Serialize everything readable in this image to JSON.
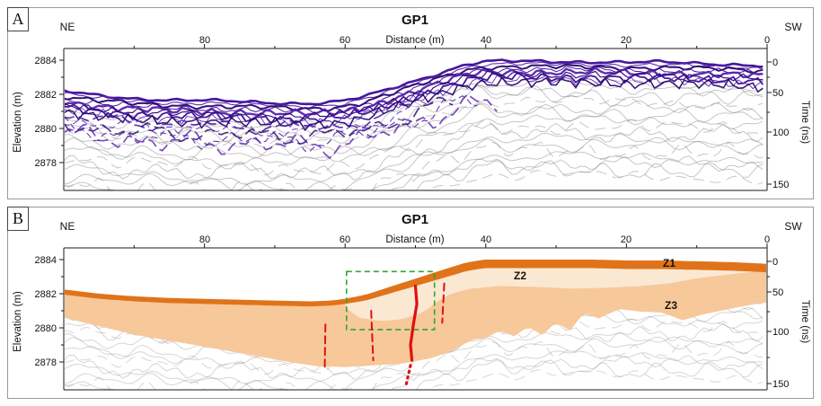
{
  "panels": [
    {
      "corner_label": "A",
      "title": "GP1",
      "dir_left": "NE",
      "dir_right": "SW",
      "axes": {
        "top_label": "Distance (m)",
        "top_ticks": [
          "80",
          "60",
          "40",
          "20",
          "0"
        ],
        "left_label": "Elevation (m)",
        "left_ticks": [
          "2884",
          "2882",
          "2880",
          "2878"
        ],
        "right_label": "Time (ns)",
        "right_ticks": [
          "0",
          "50",
          "100",
          "150"
        ]
      }
    },
    {
      "corner_label": "B",
      "title": "GP1",
      "dir_left": "NE",
      "dir_right": "SW",
      "zone_labels": [
        "Z1",
        "Z2",
        "Z3"
      ],
      "axes": {
        "top_label": "Distance (m)",
        "top_ticks": [
          "80",
          "60",
          "40",
          "20",
          "0"
        ],
        "left_label": "Elevation (m)",
        "left_ticks": [
          "2884",
          "2882",
          "2880",
          "2878"
        ],
        "right_label": "Time (ns)",
        "right_ticks": [
          "0",
          "50",
          "100",
          "150"
        ]
      }
    }
  ],
  "chart_data": [
    {
      "type": "heatmap",
      "panel": "A",
      "title": "GP1",
      "description": "GPR radargram: strong purple banded reflections draping the ground surface over weak diffuse grey reflections",
      "x_axis": {
        "label": "Distance (m)",
        "min": 0,
        "max": 100,
        "reversed": true,
        "ticks": [
          80,
          60,
          40,
          20,
          0
        ],
        "minor_ticks": [
          90,
          70,
          50,
          30,
          10
        ],
        "left_end": "NE",
        "right_end": "SW"
      },
      "y_axis_left": {
        "label": "Elevation (m)",
        "ticks": [
          2884,
          2882,
          2880,
          2878
        ],
        "minor_ticks": [
          2883,
          2881,
          2879
        ]
      },
      "y_axis_right": {
        "label": "Time (ns)",
        "ticks": [
          0,
          50,
          100,
          150
        ]
      },
      "colors": {
        "strong_reflections": "#3a0b96",
        "strong_reflections_alt": "#5a21ae",
        "weak_reflections": "#787878"
      },
      "surface_profile": {
        "distance_m": [
          0,
          5,
          10,
          15,
          20,
          25,
          30,
          35,
          40,
          41,
          43,
          45,
          48,
          51,
          54,
          57,
          60,
          62,
          65,
          70,
          75,
          80,
          85,
          90,
          95,
          100
        ],
        "elevation_m": [
          2883.75,
          2883.85,
          2883.9,
          2883.95,
          2883.95,
          2884,
          2884,
          2884,
          2884,
          2883.95,
          2883.8,
          2883.55,
          2883.15,
          2882.75,
          2882.35,
          2881.95,
          2881.7,
          2881.6,
          2881.55,
          2881.6,
          2881.65,
          2881.7,
          2881.75,
          2881.85,
          2882,
          2882.25
        ]
      }
    },
    {
      "type": "area",
      "panel": "B",
      "title": "GP1",
      "description": "Interpreted GPR section: orange surface unit Z1, pale unit Z2, peach unit Z3 over grey reflections; red lines are faults, green dashed box marks a detail area",
      "x_axis": {
        "label": "Distance (m)",
        "min": 0,
        "max": 100,
        "reversed": true,
        "ticks": [
          80,
          60,
          40,
          20,
          0
        ],
        "minor_ticks": [
          90,
          70,
          50,
          30,
          10
        ],
        "left_end": "NE",
        "right_end": "SW"
      },
      "y_axis_left": {
        "label": "Elevation (m)",
        "ticks": [
          2884,
          2882,
          2880,
          2878
        ],
        "minor_ticks": [
          2883,
          2881,
          2879
        ]
      },
      "y_axis_right": {
        "label": "Time (ns)",
        "ticks": [
          0,
          50,
          100,
          150
        ]
      },
      "zones": [
        {
          "name": "Z1",
          "color": "#e0731a",
          "thickness_m_ne": 0.3,
          "thickness_m_sw": 0.5,
          "description": "orange surface layer following topography"
        },
        {
          "name": "Z2",
          "color": "#fbe8d3",
          "description": "pale unit beneath Z1 on the SW plateau and slope",
          "bottom_boundary": {
            "distance_m": [
              2,
              4,
              6,
              8,
              10,
              14,
              18,
              23,
              28,
              33,
              38,
              42,
              45,
              47,
              49,
              52,
              55,
              58,
              60
            ],
            "elevation_m": [
              2883.28,
              2883.2,
              2883.1,
              2883,
              2882.9,
              2882.6,
              2882.45,
              2882.35,
              2882.3,
              2882.4,
              2882.45,
              2882.3,
              2882,
              2881.5,
              2880.9,
              2880.5,
              2880.4,
              2880.6,
              2881.2
            ]
          }
        },
        {
          "name": "Z3",
          "color": "#f7c697",
          "description": "thick peach unit with irregular scalloped base over grey reflections",
          "bottom_boundary": {
            "distance_m": [
              0,
              3,
              6,
              9,
              12,
              15,
              18,
              21,
              24,
              26,
              28,
              30,
              32,
              34,
              36,
              38,
              40,
              42,
              45,
              48,
              52,
              56,
              60,
              64,
              68,
              72,
              76,
              80,
              85,
              90,
              95,
              100
            ],
            "elevation_m": [
              2881.5,
              2881.3,
              2881.05,
              2880.8,
              2880.45,
              2880.9,
              2880.95,
              2881.1,
              2880.55,
              2880.9,
              2879.85,
              2880.3,
              2879.6,
              2880.05,
              2879.5,
              2879.85,
              2879.4,
              2879.3,
              2878.6,
              2878.2,
              2877.9,
              2877.8,
              2877.7,
              2877.75,
              2878,
              2878.3,
              2878.6,
              2878.9,
              2879.25,
              2879.6,
              2880.1,
              2880.6
            ]
          }
        }
      ],
      "faults": [
        {
          "style": "solid",
          "color": "#e01010",
          "width": 3.2,
          "points": [
            [
              50.0,
              2882.45
            ],
            [
              49.8,
              2881.4
            ],
            [
              50.3,
              2880.2
            ],
            [
              50.7,
              2879.0
            ],
            [
              50.5,
              2878.1
            ]
          ]
        },
        {
          "style": "dotted",
          "color": "#e01010",
          "width": 3.2,
          "points": [
            [
              50.7,
              2877.8
            ],
            [
              51.3,
              2876.7
            ]
          ]
        },
        {
          "style": "dashed",
          "color": "#e01010",
          "width": 2,
          "points": [
            [
              62.8,
              2880.2
            ],
            [
              62.9,
              2877.6
            ]
          ]
        },
        {
          "style": "dashed",
          "color": "#e01010",
          "width": 2,
          "points": [
            [
              56.3,
              2881.0
            ],
            [
              56.0,
              2878.1
            ]
          ]
        },
        {
          "style": "dashed",
          "color": "#e01010",
          "width": 2,
          "points": [
            [
              45.9,
              2882.6
            ],
            [
              46.2,
              2880.3
            ]
          ]
        }
      ],
      "highlight_box": {
        "style": "dashed",
        "color": "#2ea82e",
        "distance_m_range": [
          59.8,
          47.3
        ],
        "elevation_m_range": [
          2879.9,
          2883.3
        ]
      }
    }
  ]
}
